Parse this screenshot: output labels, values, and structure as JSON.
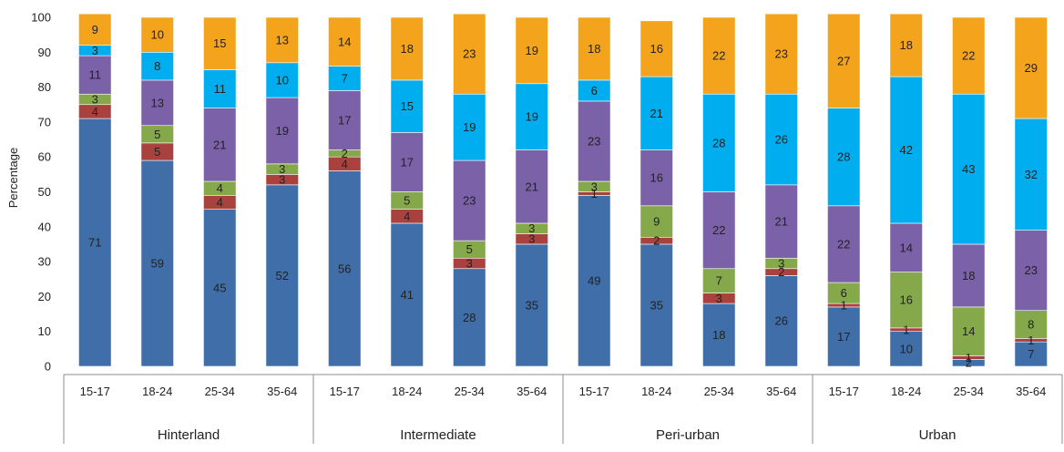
{
  "chart_data": {
    "type": "bar",
    "stacked": true,
    "ylabel": "Percentage",
    "ylim": [
      0,
      100
    ],
    "yticks": [
      0,
      10,
      20,
      30,
      40,
      50,
      60,
      70,
      80,
      90,
      100
    ],
    "grid": false,
    "legend": "none",
    "groups": [
      "Hinterland",
      "Intermediate",
      "Peri-urban",
      "Urban"
    ],
    "categories": [
      "15-17",
      "18-24",
      "25-34",
      "35-64",
      "15-17",
      "18-24",
      "25-34",
      "35-64",
      "15-17",
      "18-24",
      "25-34",
      "35-64",
      "15-17",
      "18-24",
      "25-34",
      "35-64"
    ],
    "category_group": [
      0,
      0,
      0,
      0,
      1,
      1,
      1,
      1,
      2,
      2,
      2,
      2,
      3,
      3,
      3,
      3
    ],
    "series": [
      {
        "color": "#3f6ea8",
        "values": [
          71,
          59,
          45,
          52,
          56,
          41,
          28,
          35,
          49,
          35,
          18,
          26,
          17,
          10,
          2,
          7
        ]
      },
      {
        "color": "#a9423f",
        "values": [
          4,
          5,
          4,
          3,
          4,
          4,
          3,
          3,
          1,
          2,
          3,
          2,
          1,
          1,
          1,
          1
        ]
      },
      {
        "color": "#84a84a",
        "values": [
          3,
          5,
          4,
          3,
          2,
          5,
          5,
          3,
          3,
          9,
          7,
          3,
          6,
          16,
          14,
          8
        ]
      },
      {
        "color": "#7b62a8",
        "values": [
          11,
          13,
          21,
          19,
          17,
          17,
          23,
          21,
          23,
          16,
          22,
          21,
          22,
          14,
          18,
          23
        ]
      },
      {
        "color": "#00aeef",
        "values": [
          3,
          8,
          11,
          10,
          7,
          15,
          19,
          19,
          6,
          21,
          28,
          26,
          28,
          42,
          43,
          32
        ]
      },
      {
        "color": "#f4a41c",
        "values": [
          9,
          10,
          15,
          13,
          14,
          18,
          23,
          19,
          18,
          16,
          22,
          23,
          27,
          18,
          22,
          29
        ]
      }
    ]
  }
}
